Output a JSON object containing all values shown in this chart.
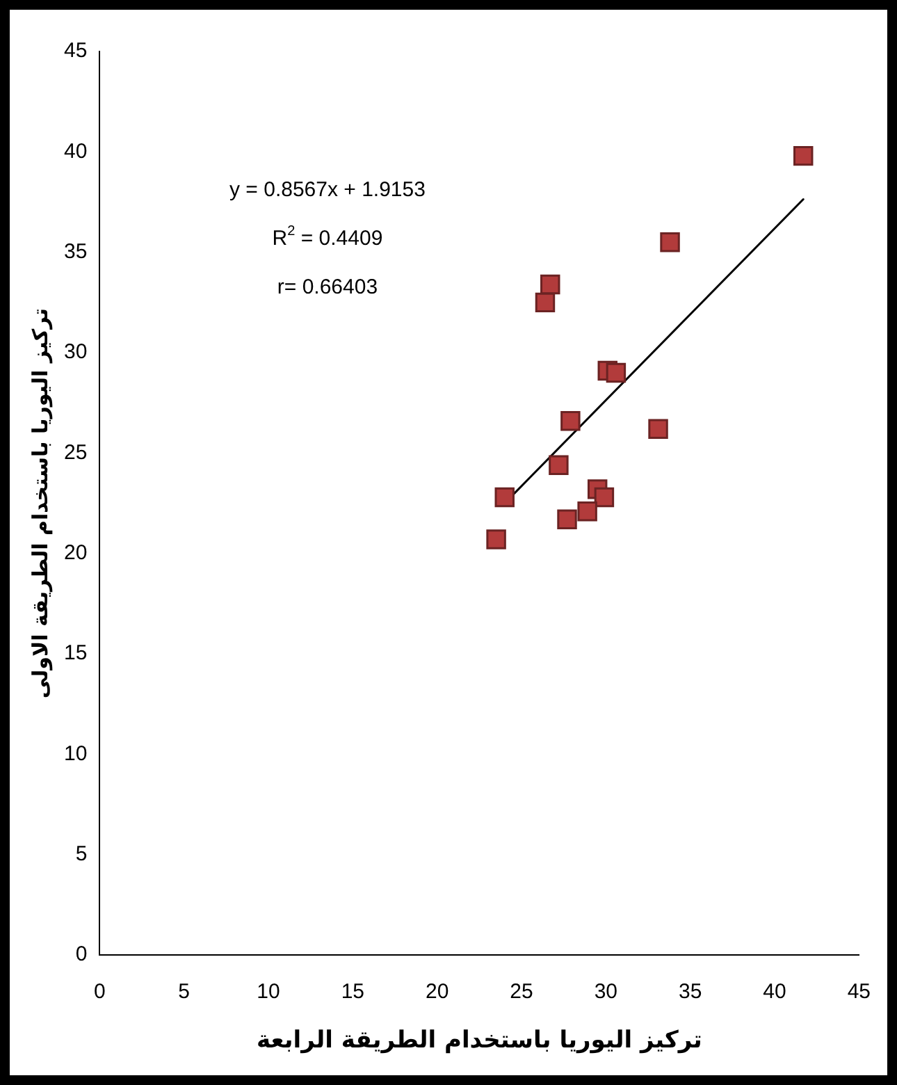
{
  "chart_data": {
    "type": "scatter",
    "xlabel": "تركيز اليوريا باستخدام الطريقة الرابعة",
    "ylabel": "تركيز اليوريا باستخدام الطريقة الاولى",
    "xlim": [
      0,
      45
    ],
    "xticks": [
      0,
      5,
      10,
      15,
      20,
      25,
      30,
      35,
      40,
      45
    ],
    "ylim": [
      0,
      45
    ],
    "yticks": [
      0,
      5,
      10,
      15,
      20,
      25,
      30,
      35,
      40,
      45
    ],
    "grid": false,
    "legend": false,
    "marker": "square",
    "series": [
      {
        "color": "#b23b3b",
        "x": [
          41.7,
          33.8,
          26.7,
          26.4,
          30.1,
          30.6,
          27.9,
          33.1,
          27.2,
          24.0,
          23.5,
          27.7,
          29.5,
          29.9,
          28.9
        ],
        "values": [
          39.8,
          35.5,
          33.4,
          32.5,
          29.1,
          29.0,
          26.6,
          26.2,
          24.4,
          22.8,
          20.7,
          21.7,
          23.2,
          22.8,
          22.1
        ]
      },
      {
        "type": "line",
        "color": "#000000",
        "marker": "none",
        "x": [
          24.0,
          41.7
        ],
        "values": [
          22.5,
          37.64
        ]
      }
    ],
    "annotations": [
      "y = 0.8567x + 1.9153",
      "R$^{2}$ = 0.4409",
      "r= 0.66403"
    ]
  }
}
